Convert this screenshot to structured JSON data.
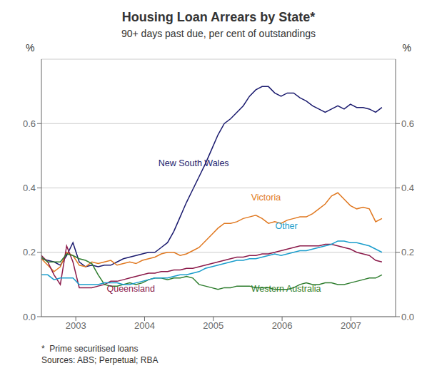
{
  "chart_data": {
    "type": "line",
    "title": "Housing Loan Arrears by State*",
    "subtitle": "90+ days past due, per cent of outstandings",
    "y_label": "%",
    "y2_label": "%",
    "notes": [
      "*  Prime securitised loans",
      "Sources: ABS; Perpetual; RBA"
    ],
    "grid": true,
    "xlim": [
      2002.5,
      2007.65
    ],
    "xticks": [
      2003,
      2004,
      2005,
      2006,
      2007
    ],
    "ylim": [
      0.0,
      0.8
    ],
    "yticks": [
      {
        "value": 0.0,
        "label": "0.0"
      },
      0.2,
      0.4,
      0.6
    ],
    "y2lim": [
      0.0,
      0.8
    ],
    "y2ticks": [
      {
        "value": 0.0,
        "label": "0.0"
      },
      0.2,
      0.4,
      0.6
    ],
    "x": [
      2002.5,
      2002.5917,
      2002.6834,
      2002.7751,
      2002.8668,
      2002.9585,
      2003.0502,
      2003.1419,
      2003.2336,
      2003.3253,
      2003.417,
      2003.5087,
      2003.6004,
      2003.6921,
      2003.7838,
      2003.8755,
      2003.9672,
      2004.0589,
      2004.1506,
      2004.2423,
      2004.334,
      2004.4257,
      2004.5174,
      2004.6091,
      2004.7008,
      2004.7925,
      2004.8842,
      2004.9759,
      2005.0676,
      2005.1593,
      2005.251,
      2005.3427,
      2005.4344,
      2005.5261,
      2005.6178,
      2005.7095,
      2005.8012,
      2005.8929,
      2005.9846,
      2006.0763,
      2006.168,
      2006.2597,
      2006.3514,
      2006.4431,
      2006.5348,
      2006.6265,
      2006.7182,
      2006.8099,
      2006.9016,
      2006.9933,
      2007.085,
      2007.1767,
      2007.2684,
      2007.3601,
      2007.4518
    ],
    "series": [
      {
        "color": "#1a1a6e",
        "values": [
          0.18,
          0.175,
          0.17,
          0.16,
          0.19,
          0.23,
          0.17,
          0.155,
          0.16,
          0.155,
          0.16,
          0.16,
          0.17,
          0.18,
          0.185,
          0.19,
          0.195,
          0.2,
          0.2,
          0.215,
          0.23,
          0.265,
          0.31,
          0.355,
          0.395,
          0.435,
          0.475,
          0.52,
          0.565,
          0.6,
          0.615,
          0.635,
          0.655,
          0.685,
          0.705,
          0.715,
          0.715,
          0.695,
          0.685,
          0.695,
          0.695,
          0.68,
          0.67,
          0.655,
          0.645,
          0.635,
          0.645,
          0.655,
          0.645,
          0.66,
          0.65,
          0.65,
          0.645,
          0.635,
          0.65
        ]
      },
      {
        "color": "#e07820",
        "values": [
          0.18,
          0.16,
          0.14,
          0.155,
          0.2,
          0.19,
          0.16,
          0.155,
          0.17,
          0.165,
          0.17,
          0.175,
          0.16,
          0.165,
          0.17,
          0.165,
          0.175,
          0.18,
          0.185,
          0.195,
          0.2,
          0.2,
          0.19,
          0.195,
          0.205,
          0.215,
          0.235,
          0.255,
          0.275,
          0.29,
          0.29,
          0.295,
          0.305,
          0.31,
          0.315,
          0.305,
          0.29,
          0.295,
          0.29,
          0.3,
          0.305,
          0.31,
          0.31,
          0.32,
          0.335,
          0.35,
          0.375,
          0.385,
          0.365,
          0.345,
          0.335,
          0.34,
          0.335,
          0.295,
          0.305
        ]
      },
      {
        "color": "#8b1a4a",
        "values": [
          0.19,
          0.17,
          0.13,
          0.1,
          0.22,
          0.17,
          0.09,
          0.09,
          0.09,
          0.095,
          0.1,
          0.11,
          0.11,
          0.115,
          0.12,
          0.125,
          0.13,
          0.135,
          0.135,
          0.14,
          0.14,
          0.145,
          0.145,
          0.15,
          0.15,
          0.155,
          0.16,
          0.165,
          0.17,
          0.175,
          0.18,
          0.185,
          0.185,
          0.19,
          0.19,
          0.195,
          0.195,
          0.2,
          0.205,
          0.21,
          0.215,
          0.22,
          0.22,
          0.22,
          0.22,
          0.225,
          0.225,
          0.22,
          0.215,
          0.21,
          0.2,
          0.195,
          0.19,
          0.175,
          0.17
        ]
      },
      {
        "color": "#2e7d2e",
        "values": [
          0.185,
          0.17,
          0.17,
          0.17,
          0.195,
          0.19,
          0.18,
          0.175,
          0.165,
          0.13,
          0.1,
          0.095,
          0.095,
          0.1,
          0.105,
          0.1,
          0.105,
          0.115,
          0.12,
          0.12,
          0.115,
          0.12,
          0.12,
          0.125,
          0.12,
          0.1,
          0.095,
          0.09,
          0.085,
          0.09,
          0.09,
          0.095,
          0.095,
          0.095,
          0.09,
          0.09,
          0.09,
          0.085,
          0.085,
          0.085,
          0.09,
          0.1,
          0.105,
          0.1,
          0.1,
          0.105,
          0.105,
          0.1,
          0.1,
          0.105,
          0.11,
          0.115,
          0.12,
          0.12,
          0.13
        ]
      },
      {
        "color": "#1a9dcc",
        "values": [
          0.13,
          0.13,
          0.115,
          0.12,
          0.12,
          0.12,
          0.1,
          0.1,
          0.1,
          0.1,
          0.105,
          0.105,
          0.105,
          0.1,
          0.1,
          0.105,
          0.11,
          0.115,
          0.12,
          0.12,
          0.12,
          0.125,
          0.13,
          0.13,
          0.135,
          0.14,
          0.15,
          0.155,
          0.16,
          0.165,
          0.17,
          0.175,
          0.175,
          0.18,
          0.18,
          0.185,
          0.19,
          0.195,
          0.19,
          0.195,
          0.2,
          0.205,
          0.205,
          0.21,
          0.215,
          0.22,
          0.225,
          0.235,
          0.235,
          0.23,
          0.23,
          0.225,
          0.22,
          0.21,
          0.2
        ]
      }
    ],
    "annotations": [
      {
        "text": "New South Wales",
        "x": 2004.2,
        "y": 0.46,
        "color": "#1a1a6e"
      },
      {
        "text": "Victoria",
        "x": 2005.55,
        "y": 0.355,
        "color": "#e07820"
      },
      {
        "text": "Queensland",
        "x": 2003.45,
        "y": 0.072,
        "color": "#8b1a4a"
      },
      {
        "text": "Western Australia",
        "x": 2005.55,
        "y": 0.072,
        "color": "#2e7d2e"
      },
      {
        "text": "Other",
        "x": 2005.9,
        "y": 0.265,
        "color": "#1a9dcc"
      }
    ]
  }
}
